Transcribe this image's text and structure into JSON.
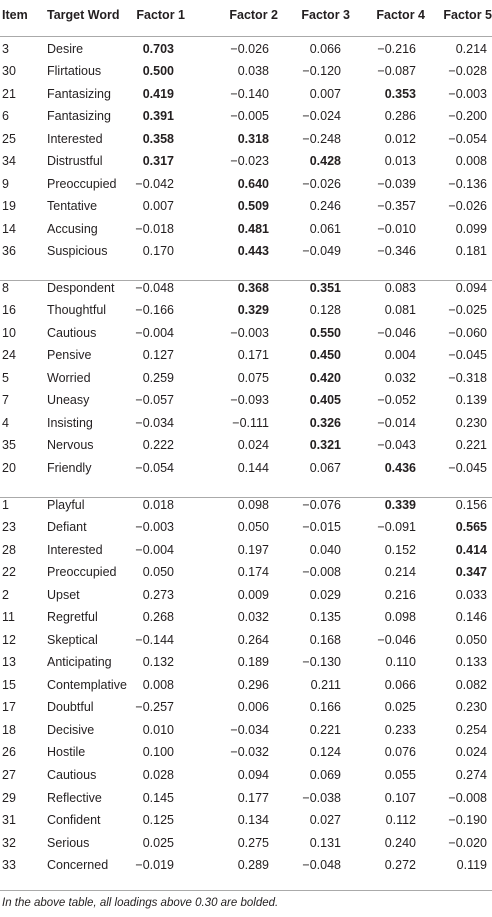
{
  "table": {
    "headers": [
      "Item",
      "Target Word",
      "Factor 1",
      "Factor 2",
      "Factor 3",
      "Factor 4",
      "Factor 5"
    ],
    "groups": [
      [
        {
          "item": "3",
          "word": "Desire",
          "values": [
            "0.703",
            "−0.026",
            "0.066",
            "−0.216",
            "0.214"
          ],
          "bold": [
            0
          ]
        },
        {
          "item": "30",
          "word": "Flirtatious",
          "values": [
            "0.500",
            "0.038",
            "−0.120",
            "−0.087",
            "−0.028"
          ],
          "bold": [
            0
          ]
        },
        {
          "item": "21",
          "word": "Fantasizing",
          "values": [
            "0.419",
            "−0.140",
            "0.007",
            "0.353",
            "−0.003"
          ],
          "bold": [
            0,
            3
          ]
        },
        {
          "item": "6",
          "word": "Fantasizing",
          "values": [
            "0.391",
            "−0.005",
            "−0.024",
            "0.286",
            "−0.200"
          ],
          "bold": [
            0
          ]
        },
        {
          "item": "25",
          "word": "Interested",
          "values": [
            "0.358",
            "0.318",
            "−0.248",
            "0.012",
            "−0.054"
          ],
          "bold": [
            0,
            1
          ]
        },
        {
          "item": "34",
          "word": "Distrustful",
          "values": [
            "0.317",
            "−0.023",
            "0.428",
            "0.013",
            "0.008"
          ],
          "bold": [
            0,
            2
          ]
        },
        {
          "item": "9",
          "word": "Preoccupied",
          "values": [
            "−0.042",
            "0.640",
            "−0.026",
            "−0.039",
            "−0.136"
          ],
          "bold": [
            1
          ]
        },
        {
          "item": "19",
          "word": "Tentative",
          "values": [
            "0.007",
            "0.509",
            "0.246",
            "−0.357",
            "−0.026"
          ],
          "bold": [
            1
          ]
        },
        {
          "item": "14",
          "word": "Accusing",
          "values": [
            "−0.018",
            "0.481",
            "0.061",
            "−0.010",
            "0.099"
          ],
          "bold": [
            1
          ]
        },
        {
          "item": "36",
          "word": "Suspicious",
          "values": [
            "0.170",
            "0.443",
            "−0.049",
            "−0.346",
            "0.181"
          ],
          "bold": [
            1
          ]
        }
      ],
      [
        {
          "item": "8",
          "word": "Despondent",
          "values": [
            "−0.048",
            "0.368",
            "0.351",
            "0.083",
            "0.094"
          ],
          "bold": [
            1,
            2
          ]
        },
        {
          "item": "16",
          "word": "Thoughtful",
          "values": [
            "−0.166",
            "0.329",
            "0.128",
            "0.081",
            "−0.025"
          ],
          "bold": [
            1
          ]
        },
        {
          "item": "10",
          "word": "Cautious",
          "values": [
            "−0.004",
            "−0.003",
            "0.550",
            "−0.046",
            "−0.060"
          ],
          "bold": [
            2
          ]
        },
        {
          "item": "24",
          "word": "Pensive",
          "values": [
            "0.127",
            "0.171",
            "0.450",
            "0.004",
            "−0.045"
          ],
          "bold": [
            2
          ]
        },
        {
          "item": "5",
          "word": "Worried",
          "values": [
            "0.259",
            "0.075",
            "0.420",
            "0.032",
            "−0.318"
          ],
          "bold": [
            2
          ]
        },
        {
          "item": "7",
          "word": "Uneasy",
          "values": [
            "−0.057",
            "−0.093",
            "0.405",
            "−0.052",
            "0.139"
          ],
          "bold": [
            2
          ]
        },
        {
          "item": "4",
          "word": "Insisting",
          "values": [
            "−0.034",
            "−0.111",
            "0.326",
            "−0.014",
            "0.230"
          ],
          "bold": [
            2
          ]
        },
        {
          "item": "35",
          "word": "Nervous",
          "values": [
            "0.222",
            "0.024",
            "0.321",
            "−0.043",
            "0.221"
          ],
          "bold": [
            2
          ]
        },
        {
          "item": "20",
          "word": "Friendly",
          "values": [
            "−0.054",
            "0.144",
            "0.067",
            "0.436",
            "−0.045"
          ],
          "bold": [
            3
          ]
        }
      ],
      [
        {
          "item": "1",
          "word": "Playful",
          "values": [
            "0.018",
            "0.098",
            "−0.076",
            "0.339",
            "0.156"
          ],
          "bold": [
            3
          ]
        },
        {
          "item": "23",
          "word": "Defiant",
          "values": [
            "−0.003",
            "0.050",
            "−0.015",
            "−0.091",
            "0.565"
          ],
          "bold": [
            4
          ]
        },
        {
          "item": "28",
          "word": "Interested",
          "values": [
            "−0.004",
            "0.197",
            "0.040",
            "0.152",
            "0.414"
          ],
          "bold": [
            4
          ]
        },
        {
          "item": "22",
          "word": "Preoccupied",
          "values": [
            "0.050",
            "0.174",
            "−0.008",
            "0.214",
            "0.347"
          ],
          "bold": [
            4
          ]
        },
        {
          "item": "2",
          "word": "Upset",
          "values": [
            "0.273",
            "0.009",
            "0.029",
            "0.216",
            "0.033"
          ],
          "bold": []
        },
        {
          "item": "11",
          "word": "Regretful",
          "values": [
            "0.268",
            "0.032",
            "0.135",
            "0.098",
            "0.146"
          ],
          "bold": []
        },
        {
          "item": "12",
          "word": "Skeptical",
          "values": [
            "−0.144",
            "0.264",
            "0.168",
            "−0.046",
            "0.050"
          ],
          "bold": []
        },
        {
          "item": "13",
          "word": "Anticipating",
          "values": [
            "0.132",
            "0.189",
            "−0.130",
            "0.110",
            "0.133"
          ],
          "bold": []
        },
        {
          "item": "15",
          "word": "Contemplative",
          "values": [
            "0.008",
            "0.296",
            "0.211",
            "0.066",
            "0.082"
          ],
          "bold": []
        },
        {
          "item": "17",
          "word": "Doubtful",
          "values": [
            "−0.257",
            "0.006",
            "0.166",
            "0.025",
            "0.230"
          ],
          "bold": []
        },
        {
          "item": "18",
          "word": "Decisive",
          "values": [
            "0.010",
            "−0.034",
            "0.221",
            "0.233",
            "0.254"
          ],
          "bold": []
        },
        {
          "item": "26",
          "word": "Hostile",
          "values": [
            "0.100",
            "−0.032",
            "0.124",
            "0.076",
            "0.024"
          ],
          "bold": []
        },
        {
          "item": "27",
          "word": "Cautious",
          "values": [
            "0.028",
            "0.094",
            "0.069",
            "0.055",
            "0.274"
          ],
          "bold": []
        },
        {
          "item": "29",
          "word": "Reflective",
          "values": [
            "0.145",
            "0.177",
            "−0.038",
            "0.107",
            "−0.008"
          ],
          "bold": []
        },
        {
          "item": "31",
          "word": "Confident",
          "values": [
            "0.125",
            "0.134",
            "0.027",
            "0.112",
            "−0.190"
          ],
          "bold": []
        },
        {
          "item": "32",
          "word": "Serious",
          "values": [
            "0.025",
            "0.275",
            "0.131",
            "0.240",
            "−0.020"
          ],
          "bold": []
        },
        {
          "item": "33",
          "word": "Concerned",
          "values": [
            "−0.019",
            "0.289",
            "−0.048",
            "0.272",
            "0.119"
          ],
          "bold": []
        }
      ]
    ]
  },
  "footnote": "In the above table, all loadings above 0.30 are bolded."
}
